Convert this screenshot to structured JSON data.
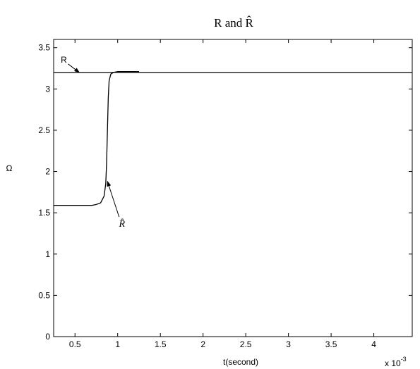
{
  "chart_data": {
    "type": "line",
    "title": "R and R̂",
    "xlabel": "t(second)",
    "ylabel": "Ω",
    "x_multiplier": "x 10",
    "x_exponent": "-3",
    "xlim": [
      0.25,
      4.45
    ],
    "ylim": [
      0,
      3.6
    ],
    "xticks": [
      0.5,
      1,
      1.5,
      2,
      2.5,
      3,
      3.5,
      4
    ],
    "xtick_labels": [
      "0.5",
      "1",
      "1.5",
      "2",
      "2.5",
      "3",
      "3.5",
      "4"
    ],
    "yticks": [
      0,
      0.5,
      1,
      1.5,
      2,
      2.5,
      3,
      3.5
    ],
    "ytick_labels": [
      "0",
      "0.5",
      "1",
      "1.5",
      "2",
      "2.5",
      "3",
      "3.5"
    ],
    "grid": false,
    "series": [
      {
        "name": "R",
        "x": [
          0.25,
          4.45
        ],
        "y": [
          3.2,
          3.2
        ]
      },
      {
        "name": "R̂",
        "x": [
          0.25,
          0.5,
          0.7,
          0.75,
          0.8,
          0.84,
          0.86,
          0.87,
          0.88,
          0.89,
          0.9,
          0.92,
          0.95,
          1.0,
          1.25
        ],
        "y": [
          1.59,
          1.59,
          1.59,
          1.6,
          1.62,
          1.7,
          1.85,
          2.1,
          2.5,
          2.9,
          3.1,
          3.18,
          3.2,
          3.21,
          3.21
        ]
      }
    ],
    "annotations": [
      {
        "text": "R",
        "x": 0.55,
        "y": 3.2,
        "label_x": 0.37,
        "label_y": 3.32,
        "style": "normal"
      },
      {
        "text": "R̂",
        "x": 0.88,
        "y": 1.88,
        "label_x": 1.05,
        "label_y": 1.33,
        "style": "italic"
      }
    ],
    "colors": {
      "line": "#000000",
      "axes": "#000000",
      "background": "#ffffff"
    }
  }
}
